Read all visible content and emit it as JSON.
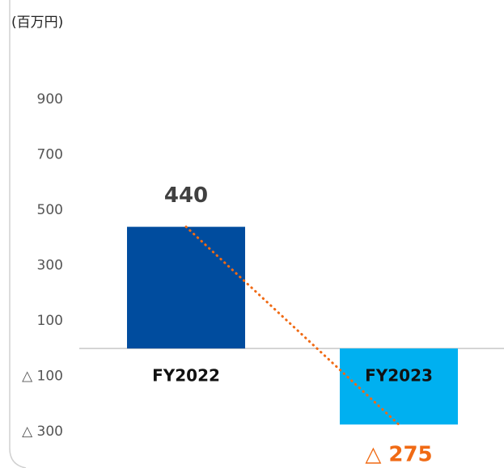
{
  "chart_data": {
    "type": "bar",
    "unit_label": "(百万円)",
    "categories": [
      "FY2022",
      "FY2023"
    ],
    "values": [
      440,
      -275
    ],
    "value_labels": [
      "440",
      "△ 275"
    ],
    "colors": [
      "#004c9e",
      "#00b0f0"
    ],
    "label_colors": [
      "#404040",
      "#f06a14"
    ],
    "trend_color": "#f06a14",
    "ylim": [
      -400,
      1000
    ],
    "yticks": [
      {
        "value": -300,
        "label": "△ 300"
      },
      {
        "value": -100,
        "label": "△ 100"
      },
      100,
      300,
      500,
      700,
      900
    ]
  }
}
